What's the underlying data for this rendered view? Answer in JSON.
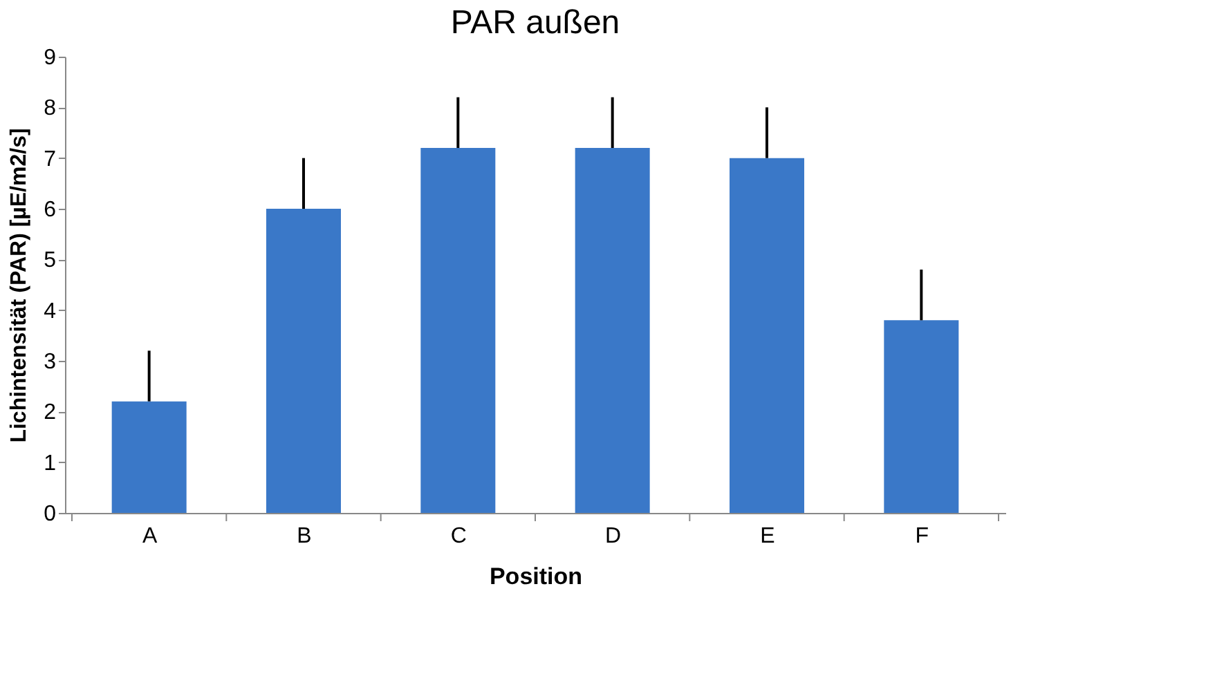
{
  "chart_data": {
    "type": "bar",
    "title": "PAR außen",
    "xlabel": "Position",
    "ylabel": "Lichintensität (PAR) [µE/m2/s]",
    "categories": [
      "A",
      "B",
      "C",
      "D",
      "E",
      "F"
    ],
    "values": [
      2.2,
      6.0,
      7.2,
      7.2,
      7.0,
      3.8
    ],
    "errors": [
      [
        2.2,
        3.2
      ],
      [
        6.0,
        7.0
      ],
      [
        7.2,
        8.2
      ],
      [
        7.2,
        8.2
      ],
      [
        7.0,
        8.0
      ],
      [
        3.8,
        4.8
      ]
    ],
    "color": "#3a78c8",
    "ylim": [
      0,
      9
    ],
    "yticks": [
      0,
      1,
      2,
      3,
      4,
      5,
      6,
      7,
      8,
      9
    ],
    "grid": false
  }
}
